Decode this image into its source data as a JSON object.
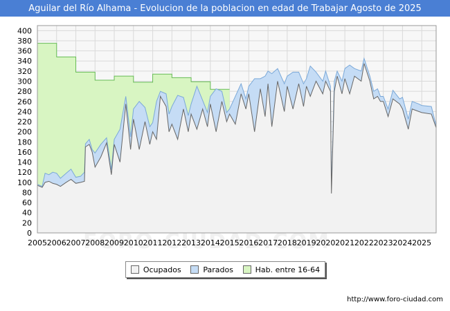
{
  "title": "Aguilar del Río Alhama - Evolucion de la poblacion en edad de Trabajar Agosto de 2025",
  "watermark": "FORO-CIUDAD.COM",
  "source": "http://www.foro-ciudad.com",
  "colors": {
    "title_bg": "#4a7fd4",
    "ocupados_fill": "#f2f2f2",
    "ocupados_line": "#666666",
    "parados_fill": "#c5dcf5",
    "parados_line": "#7aa8d8",
    "hab_fill": "#d8f5c2",
    "hab_line": "#66bb55",
    "grid": "#d9d9d9"
  },
  "chart_data": {
    "type": "area",
    "title": "Aguilar del Río Alhama - Evolucion de la poblacion en edad de Trabajar Agosto de 2025",
    "xlabel": "",
    "ylabel": "",
    "ylim": [
      0,
      410
    ],
    "yticks": [
      0,
      20,
      40,
      60,
      80,
      100,
      120,
      140,
      160,
      180,
      200,
      220,
      240,
      260,
      280,
      300,
      320,
      340,
      360,
      380,
      400
    ],
    "xlim": [
      2005,
      2025.75
    ],
    "xticks": [
      "2005",
      "2006",
      "2007",
      "2008",
      "2009",
      "2010",
      "2011",
      "2012",
      "2013",
      "2014",
      "2015",
      "2016",
      "2017",
      "2018",
      "2019",
      "2020",
      "2021",
      "2022",
      "2023",
      "2024",
      "2025"
    ],
    "legend": [
      "Ocupados",
      "Parados",
      "Hab. entre 16-64"
    ],
    "legend_position": "bottom-center",
    "series": [
      {
        "name": "Hab. entre 16-64",
        "points": [
          [
            2005,
            375
          ],
          [
            2006,
            348
          ],
          [
            2007,
            318
          ],
          [
            2008,
            302
          ],
          [
            2009,
            310
          ],
          [
            2010,
            298
          ],
          [
            2011,
            314
          ],
          [
            2012,
            307
          ],
          [
            2013,
            299
          ],
          [
            2014,
            284
          ],
          [
            2015,
            284
          ]
        ]
      },
      {
        "name": "Parados",
        "points": [
          [
            2005,
            96
          ],
          [
            2005.25,
            92
          ],
          [
            2005.4,
            118
          ],
          [
            2005.6,
            115
          ],
          [
            2005.8,
            120
          ],
          [
            2006,
            118
          ],
          [
            2006.2,
            108
          ],
          [
            2006.5,
            118
          ],
          [
            2006.75,
            126
          ],
          [
            2007,
            110
          ],
          [
            2007.25,
            112
          ],
          [
            2007.45,
            120
          ],
          [
            2007.5,
            176
          ],
          [
            2007.7,
            185
          ],
          [
            2007.85,
            165
          ],
          [
            2008,
            158
          ],
          [
            2008.3,
            175
          ],
          [
            2008.6,
            188
          ],
          [
            2008.85,
            125
          ],
          [
            2009,
            185
          ],
          [
            2009.3,
            205
          ],
          [
            2009.6,
            270
          ],
          [
            2009.85,
            190
          ],
          [
            2010,
            245
          ],
          [
            2010.3,
            260
          ],
          [
            2010.6,
            248
          ],
          [
            2010.85,
            210
          ],
          [
            2011,
            218
          ],
          [
            2011.2,
            260
          ],
          [
            2011.4,
            280
          ],
          [
            2011.7,
            275
          ],
          [
            2011.85,
            235
          ],
          [
            2012,
            250
          ],
          [
            2012.3,
            272
          ],
          [
            2012.6,
            268
          ],
          [
            2012.85,
            232
          ],
          [
            2013,
            255
          ],
          [
            2013.3,
            290
          ],
          [
            2013.6,
            262
          ],
          [
            2013.85,
            238
          ],
          [
            2014,
            270
          ],
          [
            2014.3,
            285
          ],
          [
            2014.6,
            280
          ],
          [
            2014.85,
            238
          ],
          [
            2015,
            245
          ],
          [
            2015.3,
            270
          ],
          [
            2015.6,
            295
          ],
          [
            2015.85,
            265
          ],
          [
            2016,
            290
          ],
          [
            2016.3,
            305
          ],
          [
            2016.6,
            305
          ],
          [
            2016.85,
            310
          ],
          [
            2017,
            320
          ],
          [
            2017.2,
            315
          ],
          [
            2017.5,
            325
          ],
          [
            2017.85,
            295
          ],
          [
            2018,
            310
          ],
          [
            2018.3,
            318
          ],
          [
            2018.6,
            318
          ],
          [
            2018.85,
            295
          ],
          [
            2019,
            305
          ],
          [
            2019.2,
            330
          ],
          [
            2019.5,
            318
          ],
          [
            2019.85,
            300
          ],
          [
            2020,
            320
          ],
          [
            2020.25,
            290
          ],
          [
            2020.3,
            80
          ],
          [
            2020.45,
            300
          ],
          [
            2020.6,
            320
          ],
          [
            2020.85,
            300
          ],
          [
            2021,
            325
          ],
          [
            2021.25,
            332
          ],
          [
            2021.5,
            325
          ],
          [
            2021.85,
            320
          ],
          [
            2022,
            345
          ],
          [
            2022.3,
            310
          ],
          [
            2022.5,
            280
          ],
          [
            2022.7,
            285
          ],
          [
            2022.85,
            270
          ],
          [
            2023,
            270
          ],
          [
            2023.25,
            245
          ],
          [
            2023.5,
            282
          ],
          [
            2023.85,
            265
          ],
          [
            2024,
            268
          ],
          [
            2024.3,
            225
          ],
          [
            2024.5,
            260
          ],
          [
            2024.85,
            255
          ],
          [
            2025,
            252
          ],
          [
            2025.5,
            250
          ],
          [
            2025.75,
            212
          ]
        ]
      },
      {
        "name": "Ocupados",
        "points": [
          [
            2005,
            94
          ],
          [
            2005.25,
            90
          ],
          [
            2005.4,
            100
          ],
          [
            2005.6,
            102
          ],
          [
            2005.8,
            98
          ],
          [
            2006,
            96
          ],
          [
            2006.2,
            92
          ],
          [
            2006.5,
            100
          ],
          [
            2006.75,
            106
          ],
          [
            2007,
            98
          ],
          [
            2007.25,
            100
          ],
          [
            2007.45,
            102
          ],
          [
            2007.5,
            170
          ],
          [
            2007.7,
            175
          ],
          [
            2007.85,
            160
          ],
          [
            2008,
            130
          ],
          [
            2008.3,
            150
          ],
          [
            2008.6,
            178
          ],
          [
            2008.85,
            115
          ],
          [
            2009,
            175
          ],
          [
            2009.3,
            140
          ],
          [
            2009.6,
            255
          ],
          [
            2009.85,
            165
          ],
          [
            2010,
            225
          ],
          [
            2010.3,
            165
          ],
          [
            2010.6,
            220
          ],
          [
            2010.85,
            175
          ],
          [
            2011,
            200
          ],
          [
            2011.2,
            185
          ],
          [
            2011.4,
            270
          ],
          [
            2011.7,
            250
          ],
          [
            2011.85,
            200
          ],
          [
            2012,
            215
          ],
          [
            2012.3,
            185
          ],
          [
            2012.6,
            245
          ],
          [
            2012.85,
            200
          ],
          [
            2013,
            235
          ],
          [
            2013.3,
            205
          ],
          [
            2013.6,
            245
          ],
          [
            2013.85,
            210
          ],
          [
            2014,
            255
          ],
          [
            2014.3,
            200
          ],
          [
            2014.6,
            260
          ],
          [
            2014.85,
            220
          ],
          [
            2015,
            235
          ],
          [
            2015.3,
            215
          ],
          [
            2015.6,
            275
          ],
          [
            2015.85,
            245
          ],
          [
            2016,
            275
          ],
          [
            2016.3,
            200
          ],
          [
            2016.6,
            285
          ],
          [
            2016.85,
            230
          ],
          [
            2017,
            295
          ],
          [
            2017.2,
            210
          ],
          [
            2017.5,
            300
          ],
          [
            2017.85,
            240
          ],
          [
            2018,
            290
          ],
          [
            2018.3,
            245
          ],
          [
            2018.6,
            295
          ],
          [
            2018.85,
            250
          ],
          [
            2019,
            290
          ],
          [
            2019.2,
            270
          ],
          [
            2019.5,
            300
          ],
          [
            2019.85,
            275
          ],
          [
            2020,
            300
          ],
          [
            2020.25,
            280
          ],
          [
            2020.3,
            78
          ],
          [
            2020.45,
            280
          ],
          [
            2020.6,
            310
          ],
          [
            2020.85,
            275
          ],
          [
            2021,
            305
          ],
          [
            2021.25,
            275
          ],
          [
            2021.5,
            310
          ],
          [
            2021.85,
            300
          ],
          [
            2022,
            335
          ],
          [
            2022.3,
            300
          ],
          [
            2022.5,
            265
          ],
          [
            2022.7,
            270
          ],
          [
            2022.85,
            260
          ],
          [
            2023,
            260
          ],
          [
            2023.25,
            230
          ],
          [
            2023.5,
            265
          ],
          [
            2023.85,
            255
          ],
          [
            2024,
            245
          ],
          [
            2024.3,
            205
          ],
          [
            2024.5,
            245
          ],
          [
            2024.85,
            240
          ],
          [
            2025,
            238
          ],
          [
            2025.5,
            235
          ],
          [
            2025.75,
            208
          ]
        ]
      }
    ]
  }
}
